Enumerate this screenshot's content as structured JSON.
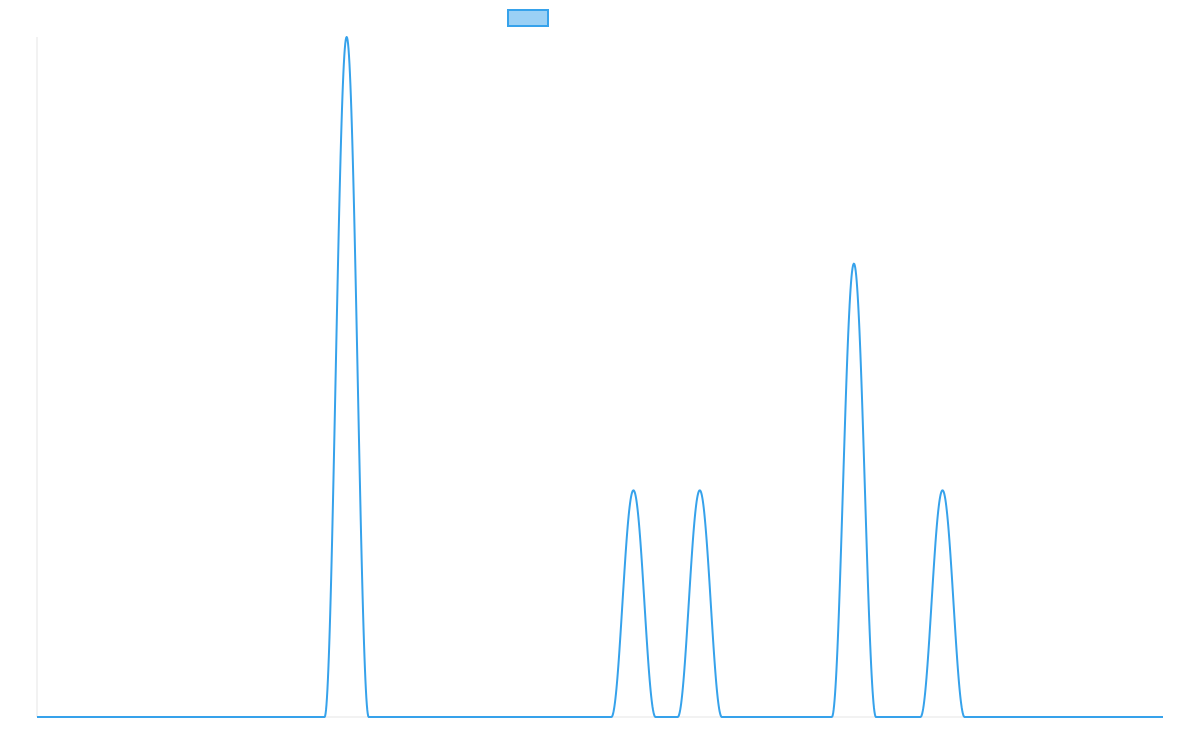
{
  "chart_data": {
    "type": "line",
    "title": "",
    "xlabel": "",
    "ylabel": "",
    "grid": false,
    "legend": {
      "position": "top-center",
      "entries": [
        {
          "label": "",
          "stroke": "#36A2EB",
          "fill": "#9AD0F5"
        }
      ]
    },
    "xlim": [
      0,
      1
    ],
    "ylim": [
      0,
      3
    ],
    "peaks": [
      {
        "x": 0.275,
        "y": 3
      },
      {
        "x": 0.5297,
        "y": 1
      },
      {
        "x": 0.5886,
        "y": 1
      },
      {
        "x": 0.7255,
        "y": 2
      },
      {
        "x": 0.8042,
        "y": 1
      }
    ],
    "peak_half_width": 0.0196,
    "series": [
      {
        "color": "#36A2EB",
        "values_description": ""
      }
    ]
  }
}
